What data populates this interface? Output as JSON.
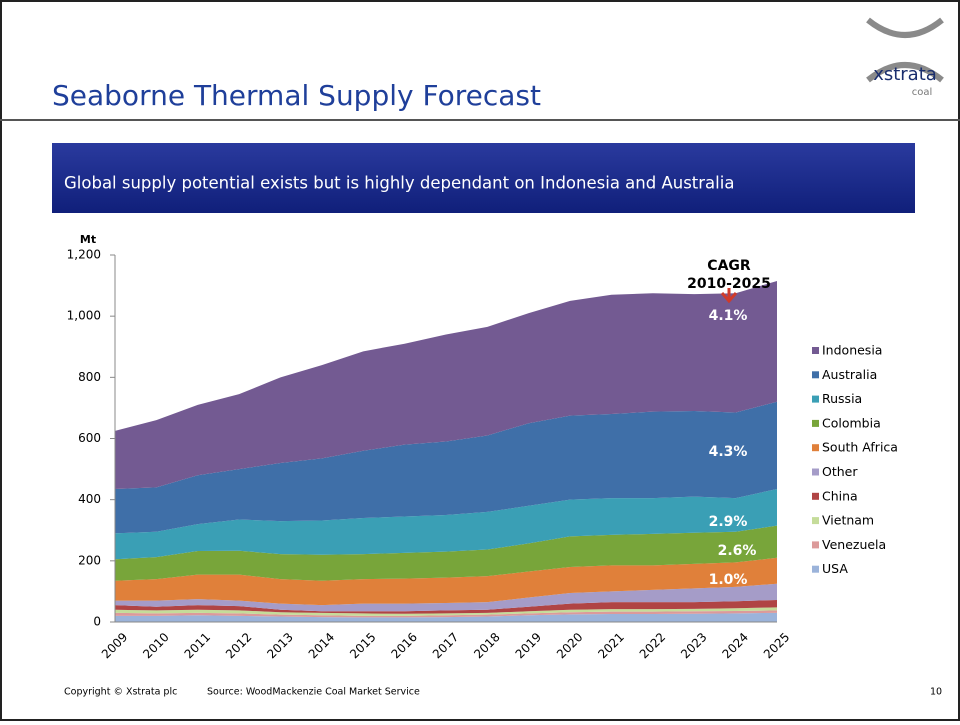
{
  "header": {
    "title": "Seaborne Thermal Supply Forecast",
    "logo": {
      "name": "xstrata",
      "sub": "coal"
    },
    "banner": "Global supply potential exists but is highly dependant on Indonesia and Australia"
  },
  "chart_data": {
    "type": "stacked_area",
    "y_label": "Mt",
    "categories": [
      "2009",
      "2010",
      "2011",
      "2012",
      "2013",
      "2014",
      "2015",
      "2016",
      "2017",
      "2018",
      "2019",
      "2020",
      "2021",
      "2022",
      "2023",
      "2024",
      "2025"
    ],
    "ylim": [
      0,
      1200
    ],
    "yticks": [
      0,
      200,
      400,
      600,
      800,
      {
        "value": 1000,
        "label": "1,000"
      },
      {
        "value": 1200,
        "label": "1,200"
      }
    ],
    "series": [
      {
        "name": "USA",
        "color": "#9bb3da",
        "values": [
          20,
          20,
          22,
          20,
          18,
          16,
          15,
          15,
          16,
          18,
          22,
          25,
          26,
          26,
          27,
          28,
          30
        ]
      },
      {
        "name": "Venezuela",
        "color": "#dc9a9a",
        "values": [
          10,
          8,
          8,
          8,
          6,
          6,
          5,
          5,
          6,
          6,
          6,
          7,
          8,
          8,
          8,
          8,
          8
        ]
      },
      {
        "name": "Vietnam",
        "color": "#c5dc9a",
        "values": [
          10,
          10,
          10,
          10,
          8,
          8,
          8,
          7,
          6,
          6,
          7,
          8,
          8,
          8,
          8,
          9,
          10
        ]
      },
      {
        "name": "China",
        "color": "#b04444",
        "values": [
          15,
          12,
          15,
          14,
          8,
          5,
          7,
          8,
          10,
          10,
          15,
          20,
          23,
          23,
          22,
          23,
          24
        ]
      },
      {
        "name": "Other",
        "color": "#a59cc8",
        "values": [
          15,
          20,
          20,
          18,
          20,
          20,
          25,
          25,
          24,
          25,
          30,
          35,
          35,
          40,
          45,
          47,
          53
        ]
      },
      {
        "name": "South Africa",
        "color": "#e0803a",
        "values": [
          65,
          70,
          80,
          85,
          80,
          80,
          80,
          82,
          83,
          85,
          85,
          85,
          85,
          80,
          80,
          80,
          85
        ]
      },
      {
        "name": "Colombia",
        "color": "#78a53a",
        "values": [
          70,
          72,
          77,
          78,
          82,
          85,
          82,
          84,
          85,
          87,
          92,
          100,
          100,
          103,
          102,
          100,
          105
        ]
      },
      {
        "name": "Russia",
        "color": "#3a9fb5",
        "values": [
          85,
          83,
          88,
          102,
          108,
          112,
          118,
          119,
          120,
          123,
          123,
          120,
          120,
          117,
          118,
          110,
          120
        ]
      },
      {
        "name": "Australia",
        "color": "#3f6fa8",
        "values": [
          145,
          145,
          160,
          165,
          190,
          203,
          220,
          235,
          240,
          250,
          270,
          275,
          275,
          283,
          280,
          280,
          285
        ]
      },
      {
        "name": "Indonesia",
        "color": "#735a92",
        "values": [
          190,
          220,
          230,
          245,
          280,
          305,
          325,
          330,
          350,
          355,
          360,
          375,
          390,
          387,
          382,
          390,
          395
        ]
      }
    ],
    "annotations": [
      {
        "text": "CAGR"
      },
      {
        "text": "2010-2025"
      },
      {
        "text": "4.1%"
      },
      {
        "text": "4.3%"
      },
      {
        "text": "2.9%"
      },
      {
        "text": "2.6%"
      },
      {
        "text": "1.0%"
      }
    ]
  },
  "footer": {
    "copyright": "Copyright © Xstrata plc",
    "source": "Source: WoodMackenzie Coal Market Service",
    "page": "10"
  }
}
